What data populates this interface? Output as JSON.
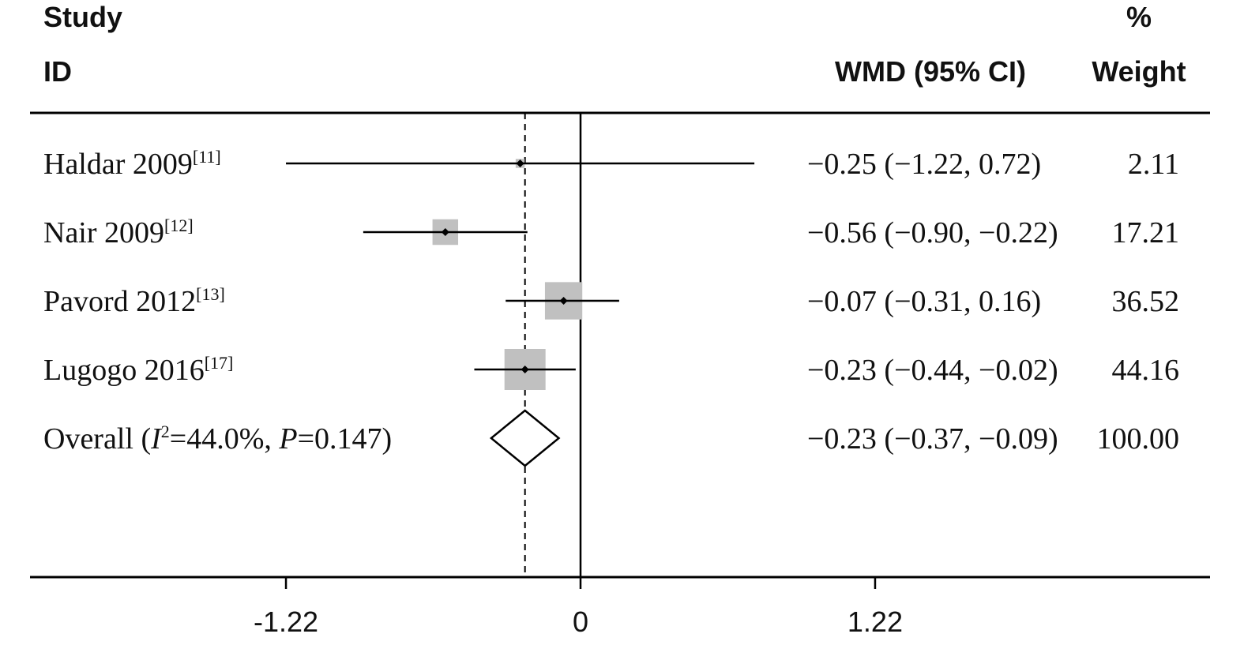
{
  "chart_data": {
    "type": "forest",
    "headers": {
      "study_line1": "Study",
      "study_line2": "ID",
      "effect": "WMD (95% CI)",
      "weight_line1": "%",
      "weight_line2": "Weight"
    },
    "studies": [
      {
        "name": "Haldar 2009",
        "ref": "[11]",
        "est": -0.25,
        "lo": -1.22,
        "hi": 0.72,
        "ci_text": "−0.25 (−1.22, 0.72)",
        "weight": 2.11,
        "weight_text": "2.11"
      },
      {
        "name": "Nair 2009",
        "ref": "[12]",
        "est": -0.56,
        "lo": -0.9,
        "hi": -0.22,
        "ci_text": "−0.56 (−0.90, −0.22)",
        "weight": 17.21,
        "weight_text": "17.21"
      },
      {
        "name": "Pavord 2012",
        "ref": "[13]",
        "est": -0.07,
        "lo": -0.31,
        "hi": 0.16,
        "ci_text": "−0.07 (−0.31, 0.16)",
        "weight": 36.52,
        "weight_text": "36.52"
      },
      {
        "name": "Lugogo 2016",
        "ref": "[17]",
        "est": -0.23,
        "lo": -0.44,
        "hi": -0.02,
        "ci_text": "−0.23 (−0.44, −0.02)",
        "weight": 44.16,
        "weight_text": "44.16"
      }
    ],
    "overall": {
      "label_prefix": "Overall (",
      "i_symbol": "I",
      "i_sup": "2",
      "i_value": "=44.0%, ",
      "p_symbol": "P",
      "p_value": "=0.147)",
      "est": -0.23,
      "lo": -0.37,
      "hi": -0.09,
      "ci_text": "−0.23 (−0.37, −0.09)",
      "weight_text": "100.00"
    },
    "x_ticks": [
      {
        "value": -1.22,
        "label": "-1.22"
      },
      {
        "value": 0,
        "label": "0"
      },
      {
        "value": 1.22,
        "label": "1.22"
      }
    ],
    "xlim": [
      -2.3,
      2.6
    ],
    "null_line": 0,
    "colors": {
      "box": "#c0c0c0",
      "line": "#000000"
    }
  }
}
